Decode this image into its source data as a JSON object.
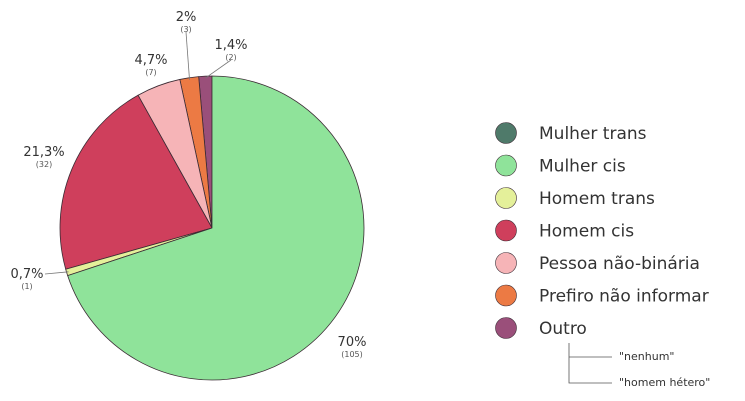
{
  "chart_data": {
    "type": "pie",
    "title": "",
    "legend_position": "right",
    "slices": [
      {
        "name": "Mulher trans",
        "value": 0,
        "label": "",
        "count": "",
        "color": "#4f7a6a"
      },
      {
        "name": "Mulher cis",
        "value": 70,
        "label": "70%",
        "count": "(105)",
        "color": "#8fe39a"
      },
      {
        "name": "Homem trans",
        "value": 0.7,
        "label": "0,7%",
        "count": "(1)",
        "color": "#e4f09a"
      },
      {
        "name": "Homem cis",
        "value": 21.3,
        "label": "21,3%",
        "count": "(32)",
        "color": "#cf3f5c"
      },
      {
        "name": "Pessoa não-binária",
        "value": 4.7,
        "label": "4,7%",
        "count": "(7)",
        "color": "#f6b4b7"
      },
      {
        "name": "Prefiro não informar",
        "value": 2,
        "label": "2%",
        "count": "(3)",
        "color": "#ec7a44"
      },
      {
        "name": "Outro",
        "value": 1.4,
        "label": "1,4%",
        "count": "(2)",
        "color": "#9a4f7a"
      }
    ],
    "outro_details": [
      "\"nenhum\"",
      "\"homem hétero\""
    ]
  }
}
